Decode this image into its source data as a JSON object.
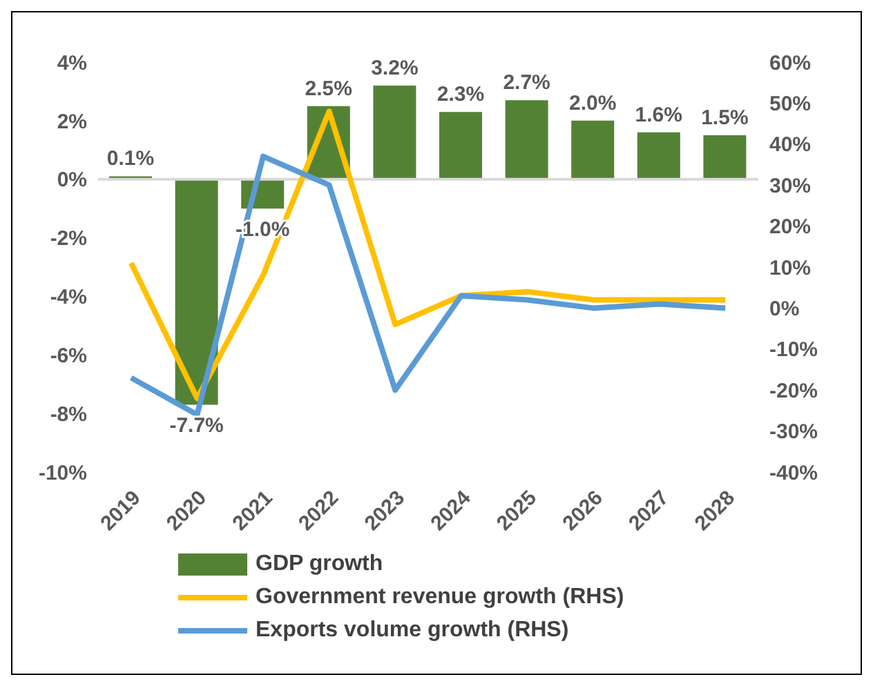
{
  "chart_data": {
    "type": "bar",
    "categories": [
      "2019",
      "2020",
      "2021",
      "2022",
      "2023",
      "2024",
      "2025",
      "2026",
      "2027",
      "2028"
    ],
    "series": [
      {
        "name": "GDP growth",
        "color": "#548235",
        "values": [
          0.1,
          -7.7,
          -1.0,
          2.5,
          3.2,
          2.3,
          2.7,
          2.0,
          1.6,
          1.5
        ],
        "value_labels": [
          "0.1%",
          "-7.7%",
          "-1.0%",
          "2.5%",
          "3.2%",
          "2.3%",
          "2.7%",
          "2.0%",
          "1.6%",
          "1.5%"
        ]
      },
      {
        "name": "Government revenue growth (RHS)",
        "type": "line",
        "axis": "y2",
        "color": "#ffc000",
        "values": [
          11,
          -22,
          8,
          48,
          -4,
          3,
          4,
          2,
          2,
          2
        ]
      },
      {
        "name": "Exports volume growth (RHS)",
        "type": "line",
        "axis": "y2",
        "color": "#5b9bd5",
        "values": [
          -17,
          -26,
          37,
          30,
          -20,
          3,
          2,
          0,
          1,
          0
        ]
      }
    ],
    "ylim": [
      -10,
      4
    ],
    "yticks": [
      {
        "value": -10,
        "label": "-10%"
      },
      {
        "value": -8,
        "label": "-8%"
      },
      {
        "value": -6,
        "label": "-6%"
      },
      {
        "value": -4,
        "label": "-4%"
      },
      {
        "value": -2,
        "label": "-2%"
      },
      {
        "value": 0,
        "label": "0%"
      },
      {
        "value": 2,
        "label": "2%"
      },
      {
        "value": 4,
        "label": "4%"
      }
    ],
    "y2lim": [
      -40,
      60
    ],
    "y2ticks": [
      {
        "value": -40,
        "label": "-40%"
      },
      {
        "value": -30,
        "label": "-30%"
      },
      {
        "value": -20,
        "label": "-20%"
      },
      {
        "value": -10,
        "label": "-10%"
      },
      {
        "value": 0,
        "label": "0%"
      },
      {
        "value": 10,
        "label": "10%"
      },
      {
        "value": 20,
        "label": "20%"
      },
      {
        "value": 30,
        "label": "30%"
      },
      {
        "value": 40,
        "label": "40%"
      },
      {
        "value": 50,
        "label": "50%"
      },
      {
        "value": 60,
        "label": "60%"
      }
    ],
    "ref_lines": [
      {
        "axis": "y",
        "value": 0,
        "color": "#d9d9d9"
      }
    ],
    "legend": "bottom",
    "marker": "none"
  }
}
